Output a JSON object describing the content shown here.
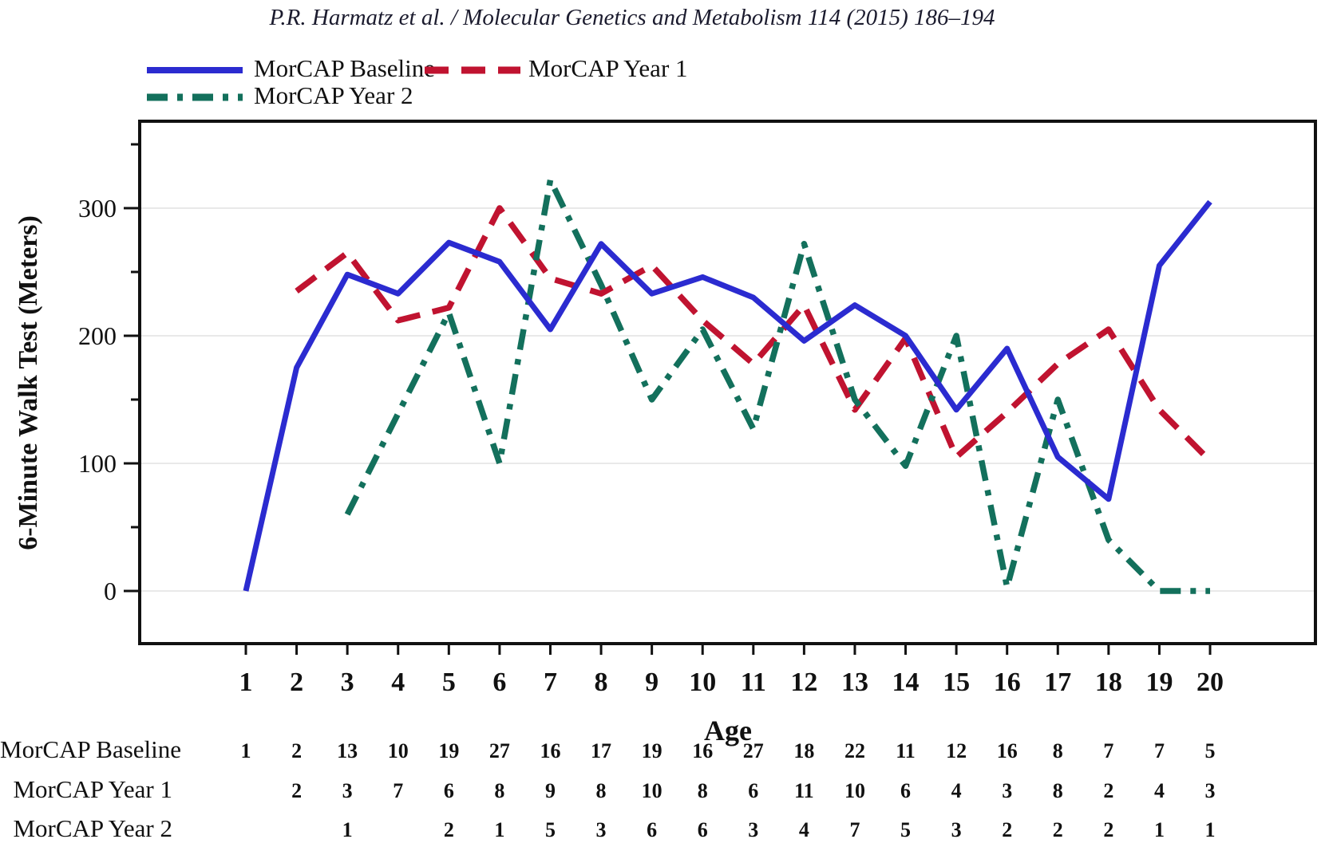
{
  "header": {
    "citation": "P.R. Harmatz et al. / Molecular Genetics and Metabolism 114 (2015) 186–194"
  },
  "legend": [
    {
      "label": "MorCAP Baseline",
      "series": "baseline",
      "style": "solid"
    },
    {
      "label": "MorCAP Year 1",
      "series": "year1",
      "style": "dashed"
    },
    {
      "label": "MorCAP Year 2",
      "series": "year2",
      "style": "dashdot"
    }
  ],
  "colors": {
    "baseline": "#2b2bd0",
    "year1": "#c01330",
    "year2": "#13705c",
    "grid": "#e9e9e9",
    "axis": "#111111"
  },
  "chart_data": {
    "type": "line",
    "title": "",
    "xlabel": "Age",
    "ylabel": "6-Minute Walk Test (Meters)",
    "x": [
      1,
      2,
      3,
      4,
      5,
      6,
      7,
      8,
      9,
      10,
      11,
      12,
      13,
      14,
      15,
      16,
      17,
      18,
      19,
      20
    ],
    "yticks": [
      0,
      100,
      200,
      300
    ],
    "yticks_minor": [
      50,
      150,
      250,
      350
    ],
    "ylim": [
      -40,
      370
    ],
    "grid": "horizontal",
    "legend_position": "top-left",
    "series": [
      {
        "name": "MorCAP Baseline",
        "color_key": "baseline",
        "style": "solid",
        "values": [
          0,
          175,
          248,
          233,
          273,
          258,
          205,
          272,
          233,
          246,
          230,
          196,
          224,
          200,
          142,
          190,
          105,
          72,
          255,
          305
        ]
      },
      {
        "name": "MorCAP Year 1",
        "color_key": "year1",
        "style": "dashed",
        "values": [
          null,
          235,
          265,
          212,
          222,
          300,
          245,
          233,
          255,
          212,
          178,
          224,
          142,
          198,
          105,
          140,
          178,
          205,
          142,
          102
        ]
      },
      {
        "name": "MorCAP Year 2",
        "color_key": "year2",
        "style": "dashdot",
        "values": [
          null,
          null,
          60,
          null,
          218,
          100,
          322,
          240,
          150,
          205,
          127,
          272,
          150,
          98,
          200,
          3,
          150,
          40,
          0,
          0
        ]
      }
    ],
    "counts_table": {
      "rows": [
        {
          "label": "MorCAP Baseline",
          "values": [
            "1",
            "2",
            "13",
            "10",
            "19",
            "27",
            "16",
            "17",
            "19",
            "16",
            "27",
            "18",
            "22",
            "11",
            "12",
            "16",
            "8",
            "7",
            "7",
            "5"
          ]
        },
        {
          "label": "MorCAP Year 1",
          "values": [
            "",
            "2",
            "3",
            "7",
            "6",
            "8",
            "9",
            "8",
            "10",
            "8",
            "6",
            "11",
            "10",
            "6",
            "4",
            "3",
            "8",
            "2",
            "4",
            "3"
          ]
        },
        {
          "label": "MorCAP Year 2",
          "values": [
            "",
            "",
            "1",
            "",
            "2",
            "1",
            "5",
            "3",
            "6",
            "6",
            "3",
            "4",
            "7",
            "5",
            "3",
            "2",
            "2",
            "2",
            "1",
            "1"
          ]
        }
      ]
    }
  }
}
